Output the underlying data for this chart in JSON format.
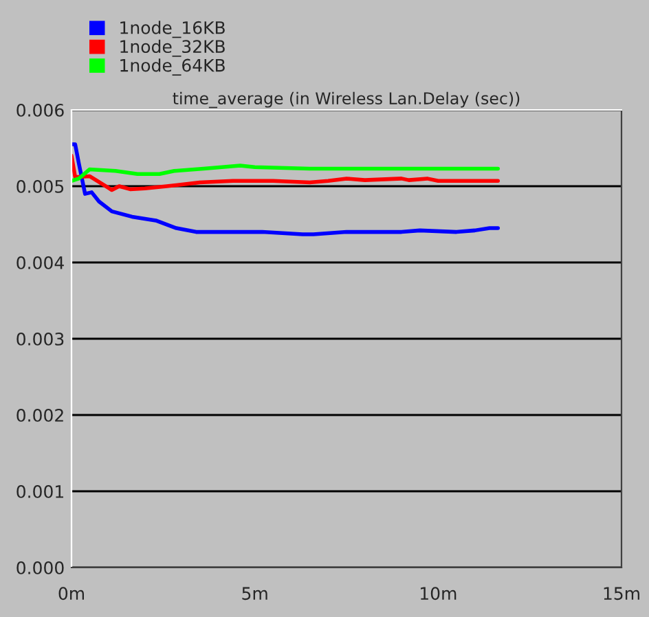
{
  "chart_data": {
    "type": "line",
    "title": "time_average (in Wireless Lan.Delay (sec))",
    "series": [
      {
        "name": "1node_16KB",
        "color": "#0000ff",
        "x": [
          0,
          0.1,
          0.2,
          0.37,
          0.55,
          0.75,
          1.1,
          1.65,
          2.3,
          2.86,
          3.4,
          4.5,
          5.2,
          6.3,
          6.6,
          7.5,
          9.0,
          9.5,
          10.5,
          11.0,
          11.4,
          11.63
        ],
        "values": [
          0.00555,
          0.00555,
          0.0053,
          0.0049,
          0.00492,
          0.0048,
          0.00467,
          0.0046,
          0.00455,
          0.00445,
          0.0044,
          0.0044,
          0.0044,
          0.00437,
          0.00437,
          0.0044,
          0.0044,
          0.00442,
          0.0044,
          0.00442,
          0.00445,
          0.00445
        ]
      },
      {
        "name": "1node_32KB",
        "color": "#ff0000",
        "x": [
          0,
          0.1,
          0.5,
          1.0,
          1.1,
          1.3,
          1.6,
          2.0,
          2.6,
          3.5,
          4.4,
          5.5,
          6.5,
          7.0,
          7.5,
          8.0,
          9.0,
          9.2,
          9.7,
          10.0,
          11.63
        ],
        "values": [
          0.0054,
          0.00512,
          0.00513,
          0.00498,
          0.00495,
          0.005,
          0.00496,
          0.00497,
          0.005,
          0.00505,
          0.00507,
          0.00507,
          0.00505,
          0.00507,
          0.0051,
          0.00508,
          0.0051,
          0.00508,
          0.0051,
          0.00507,
          0.00507
        ]
      },
      {
        "name": "1node_64KB",
        "color": "#00ff00",
        "x": [
          0,
          0.2,
          0.49,
          1.2,
          1.8,
          2.4,
          2.8,
          3.6,
          4.6,
          5.0,
          6.5,
          11.63
        ],
        "values": [
          0.00507,
          0.0051,
          0.00522,
          0.0052,
          0.00516,
          0.00516,
          0.0052,
          0.00523,
          0.00527,
          0.00525,
          0.00523,
          0.00523
        ]
      }
    ],
    "xlim": [
      0,
      15
    ],
    "xticks": [
      {
        "value": 0,
        "label": "0m"
      },
      {
        "value": 5,
        "label": "5m"
      },
      {
        "value": 10,
        "label": "10m"
      },
      {
        "value": 15,
        "label": "15m"
      }
    ],
    "ylim": [
      0,
      0.006
    ],
    "yticks": [
      {
        "value": 0,
        "label": "0.000"
      },
      {
        "value": 0.001,
        "label": "0.001"
      },
      {
        "value": 0.002,
        "label": "0.002"
      },
      {
        "value": 0.003,
        "label": "0.003"
      },
      {
        "value": 0.004,
        "label": "0.004"
      },
      {
        "value": 0.005,
        "label": "0.005"
      },
      {
        "value": 0.006,
        "label": "0.006"
      }
    ],
    "grid": "y",
    "legend": "top left"
  }
}
